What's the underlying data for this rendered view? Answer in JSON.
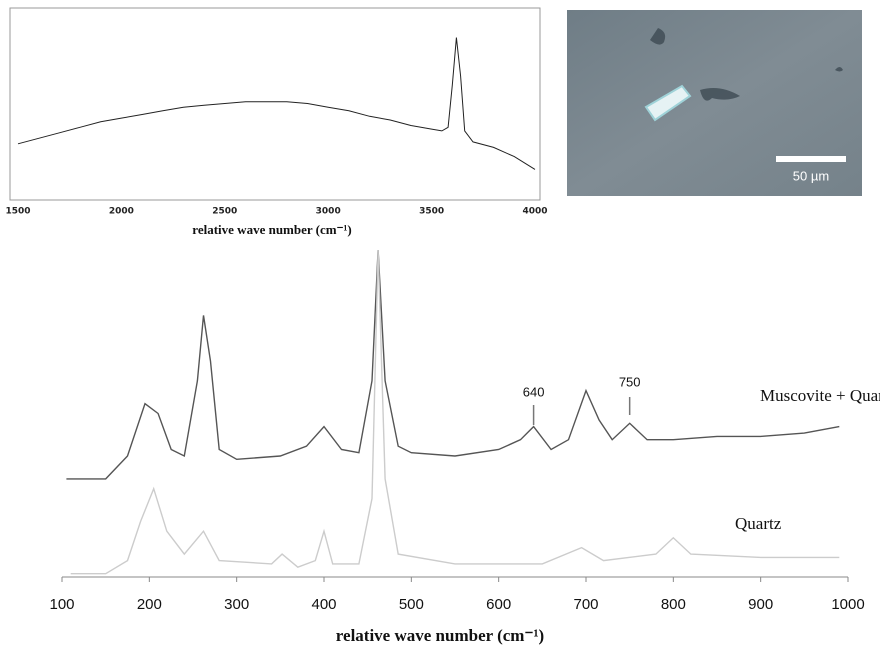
{
  "chart_data": [
    {
      "type": "line",
      "xlabel": "relative wave number (cm⁻¹)",
      "xlim": [
        1500,
        4000
      ],
      "xticks": [
        1500,
        2000,
        2500,
        3000,
        3500,
        4000
      ],
      "ylim": [
        0,
        100
      ],
      "color": "#222222",
      "x": [
        1500,
        1600,
        1700,
        1800,
        1900,
        2000,
        2100,
        2200,
        2300,
        2400,
        2500,
        2600,
        2700,
        2800,
        2900,
        3000,
        3100,
        3200,
        3300,
        3400,
        3500,
        3550,
        3580,
        3600,
        3620,
        3640,
        3660,
        3700,
        3800,
        3900,
        4000
      ],
      "values": [
        28,
        31,
        34,
        37,
        40,
        42,
        44,
        46,
        48,
        49,
        50,
        51,
        51,
        51,
        50,
        48,
        46,
        43,
        41,
        38,
        36,
        35,
        37,
        60,
        86,
        65,
        35,
        29,
        26,
        21,
        14
      ]
    },
    {
      "type": "line",
      "xlabel": "relative wave number (cm⁻¹)",
      "xlim": [
        100,
        1000
      ],
      "xticks": [
        100,
        200,
        300,
        400,
        500,
        600,
        700,
        800,
        900,
        1000
      ],
      "ylim": [
        0,
        100
      ],
      "annotations": [
        640,
        750
      ],
      "series": [
        {
          "name": "Muscovite + Quartz",
          "color": "#555555",
          "x": [
            105,
            150,
            175,
            195,
            210,
            225,
            240,
            255,
            262,
            270,
            280,
            300,
            350,
            380,
            400,
            420,
            440,
            455,
            462,
            470,
            485,
            500,
            550,
            600,
            625,
            640,
            660,
            680,
            700,
            715,
            730,
            750,
            770,
            800,
            850,
            900,
            950,
            990
          ],
          "values": [
            30,
            30,
            37,
            53,
            50,
            39,
            37,
            60,
            80,
            66,
            39,
            36,
            37,
            40,
            46,
            39,
            38,
            60,
            100,
            60,
            40,
            38,
            37,
            39,
            42,
            46,
            39,
            42,
            57,
            48,
            42,
            47,
            42,
            42,
            43,
            43,
            44,
            46
          ]
        },
        {
          "name": "Quartz",
          "color": "#cccccc",
          "x": [
            110,
            150,
            175,
            190,
            205,
            220,
            240,
            262,
            280,
            340,
            352,
            370,
            390,
            400,
            410,
            440,
            455,
            462,
            470,
            485,
            550,
            650,
            695,
            720,
            780,
            800,
            820,
            900,
            990
          ],
          "values": [
            1,
            1,
            5,
            17,
            27,
            14,
            7,
            14,
            5,
            4,
            7,
            3,
            5,
            14,
            4,
            4,
            24,
            100,
            30,
            7,
            4,
            4,
            9,
            5,
            7,
            12,
            7,
            6,
            6
          ]
        }
      ]
    }
  ],
  "micrograph": {
    "scale_label": "50 µm"
  }
}
